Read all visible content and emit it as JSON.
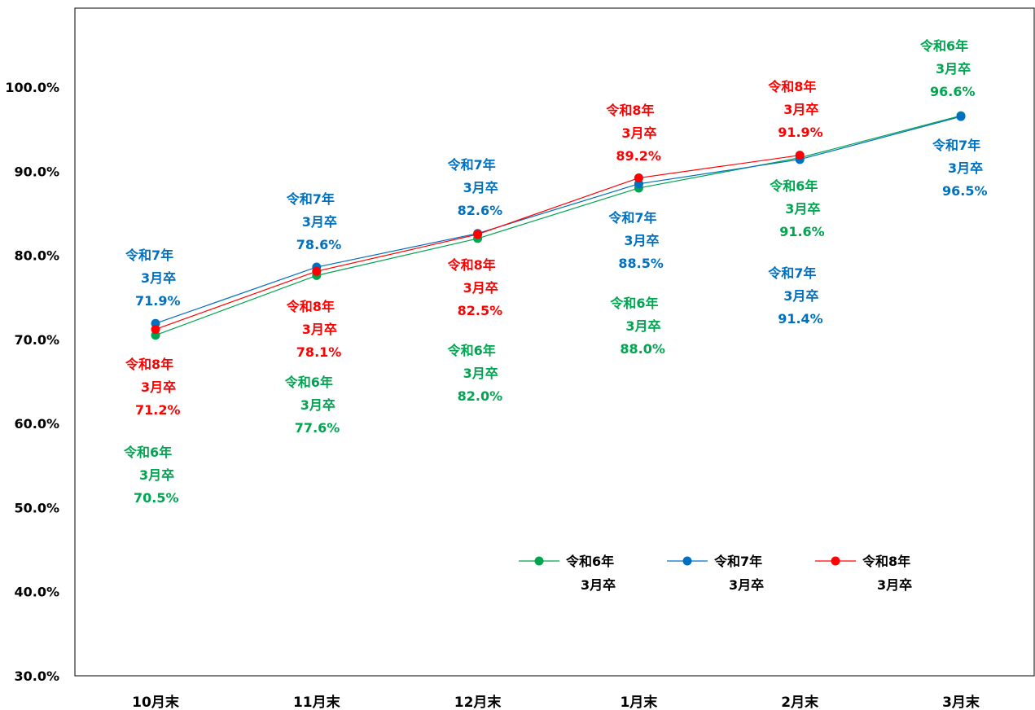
{
  "chart_data": {
    "type": "line",
    "categories": [
      "10月末",
      "11月末",
      "12月末",
      "1月末",
      "2月末",
      "3月末"
    ],
    "ylim": [
      30,
      100
    ],
    "yticks": [
      "30.0%",
      "40.0%",
      "50.0%",
      "60.0%",
      "70.0%",
      "80.0%",
      "90.0%",
      "100.0%"
    ],
    "grid": false,
    "legend_position": "bottom-right",
    "series": [
      {
        "name_line1": "令和6年",
        "name_line2": "3月卒",
        "color": "#00a550",
        "values": [
          70.5,
          77.6,
          82.0,
          88.0,
          91.6,
          96.6
        ],
        "labels": [
          "70.5%",
          "77.6%",
          "82.0%",
          "88.0%",
          "91.6%",
          "96.6%"
        ]
      },
      {
        "name_line1": "令和7年",
        "name_line2": "3月卒",
        "color": "#0070c0",
        "values": [
          71.9,
          78.6,
          82.6,
          88.5,
          91.4,
          96.5
        ],
        "labels": [
          "71.9%",
          "78.6%",
          "82.6%",
          "88.5%",
          "91.4%",
          "96.5%"
        ]
      },
      {
        "name_line1": "令和8年",
        "name_line2": "3月卒",
        "color": "#ff0000",
        "values": [
          71.2,
          78.1,
          82.5,
          89.2,
          91.9,
          null
        ],
        "labels": [
          "71.2%",
          "78.1%",
          "82.5%",
          "89.2%",
          "91.9%",
          null
        ]
      }
    ]
  }
}
